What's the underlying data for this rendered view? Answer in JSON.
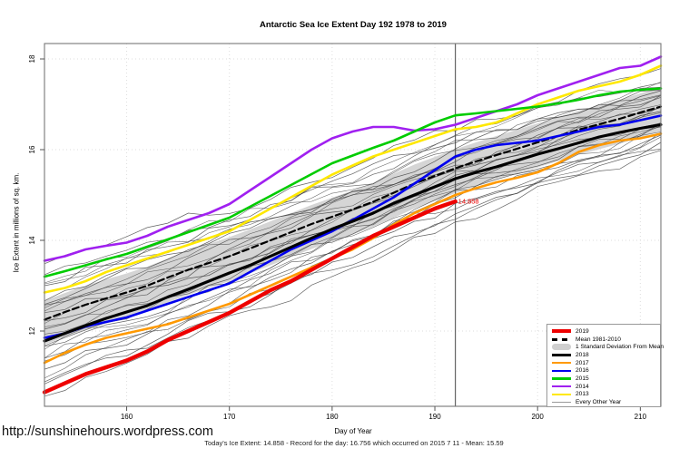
{
  "page": {
    "url_text": "http://sunshinehours.wordpress.com",
    "footer_note": "Today's Ice Extent: 14.858  - Record for the day: 16.756 which occurred on 2015 7 11  - Mean: 15.59"
  },
  "chart_data": {
    "type": "line",
    "title": "Antarctic Sea Ice Extent Day 192 1978 to 2019",
    "xlabel": "Day of Year",
    "ylabel": "Ice Extent in millions of sq. km.",
    "xlim": [
      152,
      212
    ],
    "ylim": [
      10.34,
      18.34
    ],
    "x_ticks": [
      160,
      170,
      180,
      190,
      200,
      210
    ],
    "y_ticks": [
      12,
      14,
      16,
      18
    ],
    "grid": "dotted-at-ticks",
    "marker_line_x": 192,
    "annotation": {
      "text": "14.858",
      "x": 192,
      "y": 14.858,
      "color": "#ee0000"
    },
    "days": [
      152,
      154,
      156,
      158,
      160,
      162,
      164,
      166,
      168,
      170,
      172,
      174,
      176,
      178,
      180,
      182,
      184,
      186,
      188,
      190,
      192,
      194,
      196,
      198,
      200,
      202,
      204,
      206,
      208,
      210,
      212
    ],
    "band": {
      "name": "1 Standard Deviation From Mean",
      "color": "#d5d5d5",
      "top": [
        12.67,
        12.84,
        13.0,
        13.14,
        13.27,
        13.42,
        13.6,
        13.77,
        13.92,
        14.07,
        14.24,
        14.42,
        14.6,
        14.78,
        14.94,
        15.1,
        15.27,
        15.47,
        15.67,
        15.84,
        16.01,
        16.16,
        16.3,
        16.44,
        16.58,
        16.72,
        16.86,
        16.98,
        17.1,
        17.24,
        17.37
      ],
      "bottom": [
        11.7,
        11.87,
        12.03,
        12.17,
        12.3,
        12.45,
        12.63,
        12.8,
        12.95,
        13.1,
        13.27,
        13.45,
        13.63,
        13.81,
        13.97,
        14.13,
        14.3,
        14.5,
        14.7,
        14.87,
        15.04,
        15.19,
        15.33,
        15.47,
        15.61,
        15.75,
        15.89,
        16.01,
        16.13,
        16.27,
        16.4
      ]
    },
    "series": [
      {
        "name": "Mean 1981-2010",
        "color": "#000000",
        "width": 2.2,
        "dash": "7,4",
        "values": [
          12.25,
          12.42,
          12.58,
          12.72,
          12.85,
          13.0,
          13.18,
          13.35,
          13.5,
          13.65,
          13.82,
          14.0,
          14.18,
          14.36,
          14.52,
          14.68,
          14.85,
          15.05,
          15.25,
          15.42,
          15.59,
          15.74,
          15.88,
          16.02,
          16.16,
          16.3,
          16.44,
          16.56,
          16.68,
          16.82,
          16.95
        ]
      },
      {
        "name": "2017",
        "color": "#ff9900",
        "width": 2.6,
        "values": [
          11.3,
          11.52,
          11.7,
          11.85,
          11.95,
          12.05,
          12.15,
          12.3,
          12.45,
          12.6,
          12.8,
          13.0,
          13.2,
          13.4,
          13.6,
          13.8,
          14.05,
          14.35,
          14.6,
          14.8,
          15.0,
          15.15,
          15.28,
          15.38,
          15.5,
          15.7,
          15.95,
          16.1,
          16.2,
          16.25,
          16.35
        ]
      },
      {
        "name": "2013",
        "color": "#ffe800",
        "width": 2.6,
        "values": [
          12.85,
          12.95,
          13.1,
          13.3,
          13.45,
          13.6,
          13.75,
          13.9,
          14.05,
          14.2,
          14.45,
          14.7,
          14.95,
          15.2,
          15.45,
          15.65,
          15.85,
          16.0,
          16.15,
          16.3,
          16.45,
          16.5,
          16.6,
          16.8,
          17.0,
          17.15,
          17.3,
          17.4,
          17.5,
          17.65,
          17.85
        ]
      },
      {
        "name": "2014",
        "color": "#a020f0",
        "width": 2.6,
        "values": [
          13.55,
          13.65,
          13.8,
          13.88,
          13.95,
          14.1,
          14.3,
          14.45,
          14.6,
          14.8,
          15.1,
          15.4,
          15.7,
          16.0,
          16.25,
          16.4,
          16.5,
          16.5,
          16.42,
          16.45,
          16.55,
          16.7,
          16.85,
          17.0,
          17.2,
          17.35,
          17.5,
          17.65,
          17.8,
          17.85,
          18.05
        ]
      },
      {
        "name": "2015",
        "color": "#00cc00",
        "width": 2.6,
        "values": [
          13.2,
          13.32,
          13.45,
          13.58,
          13.7,
          13.86,
          14.02,
          14.18,
          14.34,
          14.5,
          14.74,
          14.98,
          15.22,
          15.46,
          15.7,
          15.87,
          16.04,
          16.2,
          16.4,
          16.6,
          16.756,
          16.8,
          16.85,
          16.9,
          16.95,
          17.02,
          17.1,
          17.2,
          17.28,
          17.32,
          17.35
        ]
      },
      {
        "name": "2016",
        "color": "#0000ee",
        "width": 2.6,
        "values": [
          11.85,
          11.95,
          12.1,
          12.2,
          12.3,
          12.45,
          12.6,
          12.75,
          12.9,
          13.05,
          13.3,
          13.55,
          13.8,
          14.0,
          14.2,
          14.45,
          14.7,
          14.95,
          15.25,
          15.55,
          15.85,
          16.0,
          16.1,
          16.15,
          16.2,
          16.3,
          16.4,
          16.5,
          16.55,
          16.65,
          16.75
        ]
      },
      {
        "name": "2018",
        "color": "#000000",
        "width": 3.1,
        "values": [
          11.78,
          11.95,
          12.12,
          12.28,
          12.42,
          12.56,
          12.75,
          12.92,
          13.1,
          13.28,
          13.45,
          13.65,
          13.85,
          14.05,
          14.25,
          14.42,
          14.6,
          14.82,
          15.0,
          15.18,
          15.36,
          15.5,
          15.62,
          15.76,
          15.9,
          16.02,
          16.15,
          16.28,
          16.38,
          16.47,
          16.55
        ]
      },
      {
        "name": "2019",
        "color": "#ee0000",
        "width": 4.4,
        "values": [
          10.65,
          10.85,
          11.05,
          11.2,
          11.35,
          11.55,
          11.8,
          12.0,
          12.2,
          12.4,
          12.65,
          12.9,
          13.1,
          13.35,
          13.6,
          13.85,
          14.1,
          14.3,
          14.5,
          14.7,
          14.858
        ]
      }
    ],
    "every_other_year": {
      "name": "Every Other Year",
      "color": "#3c3c3c",
      "count": 28,
      "seed": 11
    },
    "legend": [
      {
        "label": "2019",
        "type": "line",
        "color": "#ee0000",
        "thickness": 4
      },
      {
        "label": "Mean 1981-2010",
        "type": "dashed",
        "color": "#000000",
        "thickness": 3
      },
      {
        "label": "1 Standard Deviation From Mean",
        "type": "band",
        "color": "#cfcfcf"
      },
      {
        "label": "2018",
        "type": "line",
        "color": "#000000",
        "thickness": 3
      },
      {
        "label": "2017",
        "type": "line",
        "color": "#ff9900",
        "thickness": 2.5
      },
      {
        "label": "2016",
        "type": "line",
        "color": "#0000ee",
        "thickness": 2.5
      },
      {
        "label": "2015",
        "type": "line",
        "color": "#00cc00",
        "thickness": 2.5
      },
      {
        "label": "2014",
        "type": "line",
        "color": "#a020f0",
        "thickness": 2.5
      },
      {
        "label": "2013",
        "type": "line",
        "color": "#ffe800",
        "thickness": 2.5
      },
      {
        "label": "Every Other Year",
        "type": "line",
        "color": "#999999",
        "thickness": 1
      }
    ]
  }
}
